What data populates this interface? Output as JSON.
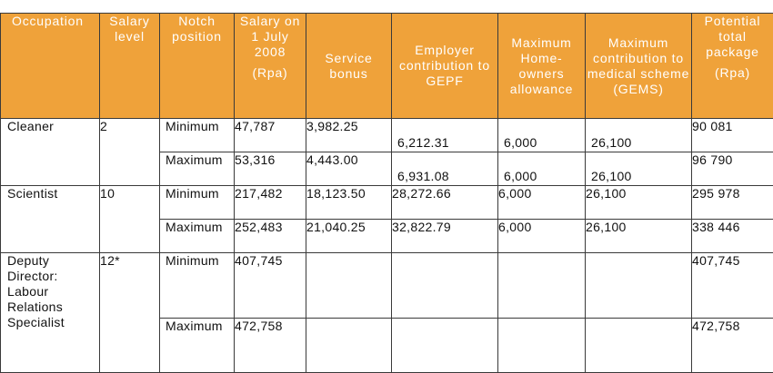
{
  "table": {
    "headers": {
      "occupation": "Occupation",
      "salary_level": "Salary level",
      "notch_position": "Notch position",
      "salary_2008": "Salary on 1 July 2008",
      "salary_2008_unit": "(Rpa)",
      "service_bonus": "Service bonus",
      "employer_contribution": "Employer contribution to GEPF",
      "home_owners": "Maximum Home-owners allowance",
      "medical": "Maximum contribution to medical scheme (GEMS)",
      "potential_total": "Potential total package",
      "potential_total_unit": "(Rpa)"
    },
    "groups": [
      {
        "occupation": "Cleaner",
        "salary_level": "2",
        "rows": [
          {
            "notch": "Minimum",
            "salary": "47,787",
            "bonus": "3,982.25",
            "gepf": "6,212.31",
            "home": "6,000",
            "medical": "26,100",
            "total": "90 081"
          },
          {
            "notch": "Maximum",
            "salary": "53,316",
            "bonus": "4,443.00",
            "gepf": "6,931.08",
            "home": "6,000",
            "medical": "26,100",
            "total": "96 790"
          }
        ]
      },
      {
        "occupation": "Scientist",
        "salary_level": "10",
        "rows": [
          {
            "notch": "Minimum",
            "salary": "217,482",
            "bonus": "18,123.50",
            "gepf": "28,272.66",
            "home": "6,000",
            "medical": "26,100",
            "total": "295 978"
          },
          {
            "notch": "Maximum",
            "salary": "252,483",
            "bonus": "21,040.25",
            "gepf": "32,822.79",
            "home": "6,000",
            "medical": "26,100",
            "total": "338 446"
          }
        ]
      },
      {
        "occupation": "Deputy Director: Labour Relations Specialist",
        "salary_level": "12*",
        "rows": [
          {
            "notch": "Minimum",
            "salary": "407,745",
            "bonus": "",
            "gepf": "",
            "home": "",
            "medical": "",
            "total": "407,745"
          },
          {
            "notch": "Maximum",
            "salary": "472,758",
            "bonus": "",
            "gepf": "",
            "home": "",
            "medical": "",
            "total": "472,758"
          }
        ]
      }
    ]
  }
}
